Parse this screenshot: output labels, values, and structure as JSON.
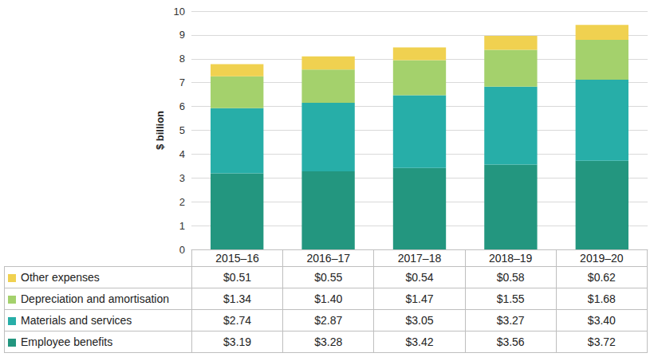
{
  "chart_data": {
    "type": "bar",
    "stacked": true,
    "y_label": "$ billion",
    "categories": [
      "2015–16",
      "2016–17",
      "2017–18",
      "2018–19",
      "2019–20"
    ],
    "series": [
      {
        "name": "Employee benefits",
        "color": "#23967f",
        "values": [
          3.19,
          3.28,
          3.42,
          3.56,
          3.72
        ],
        "value_labels": [
          "$3.19",
          "$3.28",
          "$3.42",
          "$3.56",
          "$3.72"
        ]
      },
      {
        "name": "Materials and services",
        "color": "#27aea8",
        "values": [
          2.74,
          2.87,
          3.05,
          3.27,
          3.4
        ],
        "value_labels": [
          "$2.74",
          "$2.87",
          "$3.05",
          "$3.27",
          "$3.40"
        ]
      },
      {
        "name": "Depreciation and amortisation",
        "color": "#a4d16c",
        "values": [
          1.34,
          1.4,
          1.47,
          1.55,
          1.68
        ],
        "value_labels": [
          "$1.34",
          "$1.40",
          "$1.47",
          "$1.55",
          "$1.68"
        ]
      },
      {
        "name": "Other expenses",
        "color": "#f0d150",
        "values": [
          0.51,
          0.55,
          0.54,
          0.58,
          0.62
        ],
        "value_labels": [
          "$0.51",
          "$0.55",
          "$0.54",
          "$0.58",
          "$0.62"
        ]
      }
    ],
    "ylim": [
      0,
      10
    ],
    "yticks": [
      0,
      1,
      2,
      3,
      4,
      5,
      6,
      7,
      8,
      9,
      10
    ],
    "grid": true
  }
}
